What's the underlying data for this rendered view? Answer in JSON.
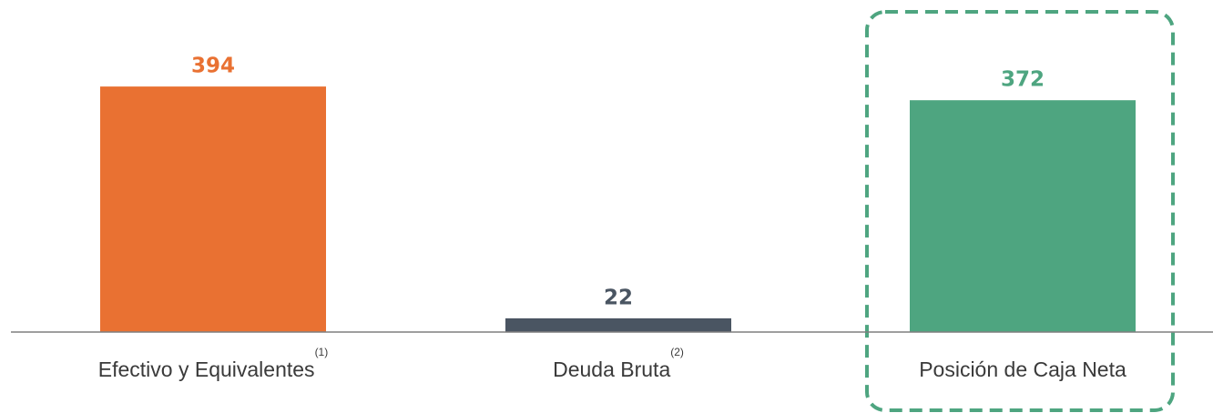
{
  "chart_data": {
    "type": "bar",
    "categories": [
      "Efectivo y Equivalentes",
      "Deuda Bruta",
      "Posición de Caja Neta"
    ],
    "footnote_marks": [
      "(1)",
      "(2)",
      null
    ],
    "values": [
      394,
      22,
      372
    ],
    "colors": [
      "#e97132",
      "#4a5562",
      "#4ea580"
    ],
    "ylim": [
      0,
      400
    ]
  }
}
